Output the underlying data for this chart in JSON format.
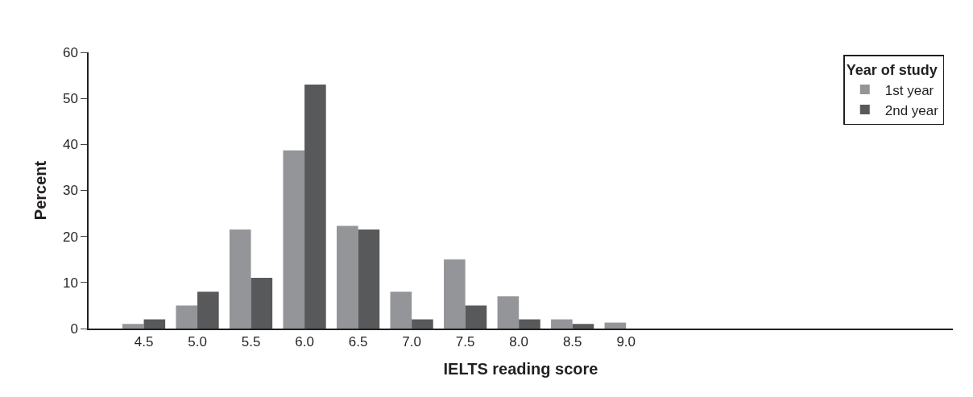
{
  "chart_data": {
    "type": "bar",
    "xlabel": "IELTS reading score",
    "ylabel": "Percent",
    "legend_title": "Year of study",
    "categories": [
      "4.5",
      "5.0",
      "5.5",
      "6.0",
      "6.5",
      "7.0",
      "7.5",
      "8.0",
      "8.5",
      "9.0"
    ],
    "series": [
      {
        "name": "1st year",
        "color": "#939598",
        "values": [
          1,
          5,
          21.5,
          38.7,
          22.3,
          8,
          15,
          7,
          2,
          1.3
        ]
      },
      {
        "name": "2nd year",
        "color": "#58595b",
        "values": [
          2,
          8,
          11,
          53,
          21.5,
          2,
          5,
          2,
          1,
          0
        ]
      }
    ],
    "ylim": [
      0,
      60
    ],
    "yticks": [
      0,
      10,
      20,
      30,
      40,
      50,
      60
    ],
    "legend": "top right"
  }
}
